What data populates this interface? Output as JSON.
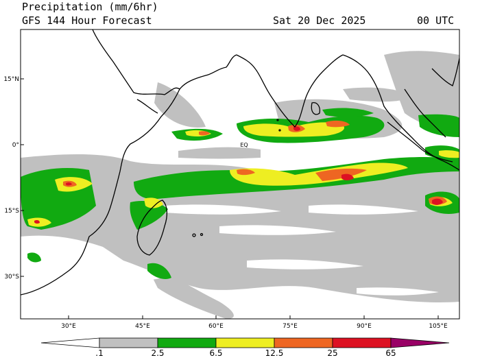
{
  "header": {
    "title": "Precipitation (mm/6hr)",
    "subtitle": "GFS 144 Hour Forecast",
    "date": "Sat 20 Dec 2025",
    "time": "00 UTC"
  },
  "map": {
    "equator_label": "EQ",
    "lat_ticks": [
      "15°N",
      "0°",
      "15°S",
      "30°S"
    ],
    "lon_ticks": [
      "30°E",
      "45°E",
      "60°E",
      "75°E",
      "90°E",
      "105°E"
    ],
    "colors": {
      "land_outline": "#000000",
      "band_light": "#c0c0c0",
      "band_green": "#11aa11",
      "band_yellow": "#eeee22",
      "band_orange": "#ee6622",
      "band_red": "#dd1122",
      "band_magenta": "#990066"
    }
  },
  "colorbar": {
    "labels": [
      ".1",
      "2.5",
      "6.5",
      "12.5",
      "25",
      "65"
    ],
    "colors": [
      "#ffffff",
      "#c0c0c0",
      "#11aa11",
      "#eeee22",
      "#ee6622",
      "#dd1122",
      "#990066"
    ]
  }
}
